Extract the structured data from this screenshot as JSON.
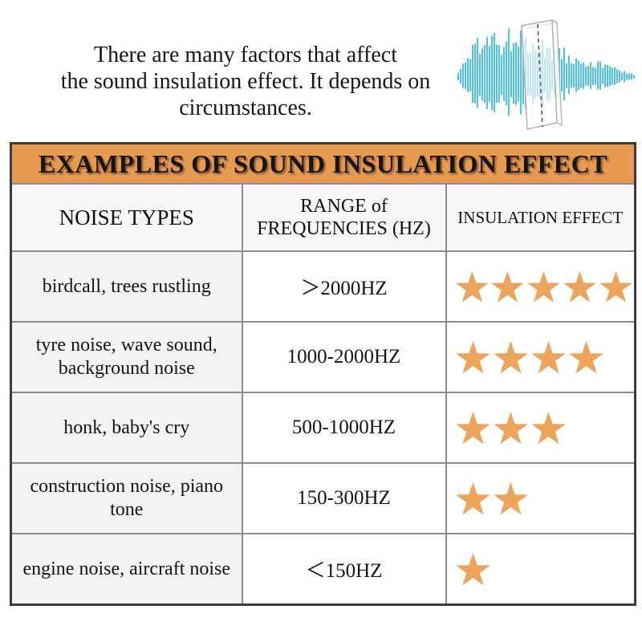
{
  "intro": {
    "line1": "There are many factors that affect",
    "line2": "the sound insulation effect. It depends on circumstances."
  },
  "graphic": {
    "name": "sound-wave-passing-through-insulation-panel",
    "wave_color": "#4cc2ee",
    "panel_outline": "#b7b1aa",
    "dashed_line_color": "#5a5a5a"
  },
  "table": {
    "title": "EXAMPLES OF SOUND INSULATION EFFECT",
    "title_bg": "#e79b52",
    "star_color": "#eca35a",
    "grid_color": "#8c8c8c",
    "columns": [
      "NOISE TYPES",
      "RANGE of\nFREQUENCIES (HZ)",
      "INSULATION EFFECT"
    ],
    "rows": [
      {
        "noise": "birdcall, trees rustling",
        "range": "＞2000HZ",
        "stars": 5
      },
      {
        "noise": "tyre noise, wave sound,\nbackground noise",
        "range": "1000-2000HZ",
        "stars": 4
      },
      {
        "noise": "honk, baby's cry",
        "range": "500-1000HZ",
        "stars": 3
      },
      {
        "noise": "construction noise, piano\ntone",
        "range": "150-300HZ",
        "stars": 2
      },
      {
        "noise": "engine noise, aircraft noise",
        "range": "＜150HZ",
        "stars": 1
      }
    ]
  },
  "chart_data": {
    "type": "table",
    "title": "EXAMPLES OF SOUND INSULATION EFFECT",
    "columns": [
      "NOISE TYPES",
      "RANGE of FREQUENCIES (HZ)",
      "INSULATION EFFECT (stars out of 5)"
    ],
    "categories": [
      "birdcall, trees rustling",
      "tyre noise, wave sound, background noise",
      "honk, baby's cry",
      "construction noise, piano tone",
      "engine noise, aircraft noise"
    ],
    "frequency_ranges": [
      "＞2000HZ",
      "1000-2000HZ",
      "500-1000HZ",
      "150-300HZ",
      "＜150HZ"
    ],
    "values": [
      5,
      4,
      3,
      2,
      1
    ]
  }
}
